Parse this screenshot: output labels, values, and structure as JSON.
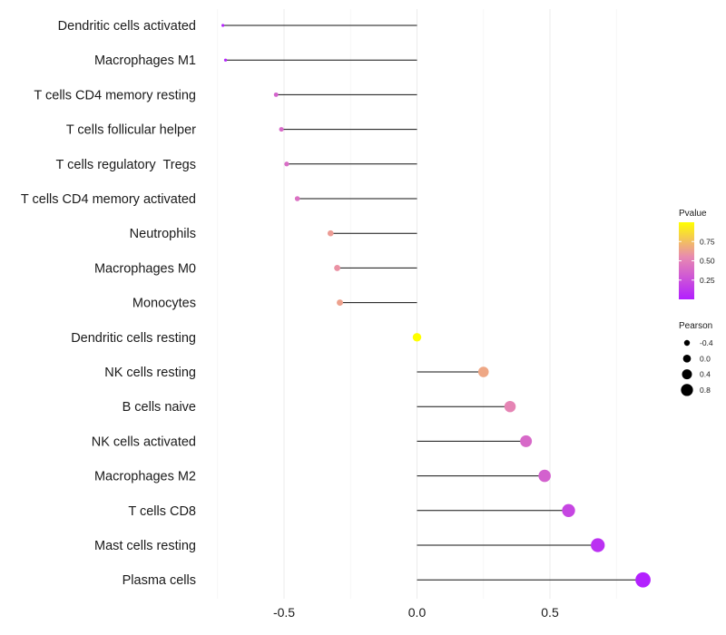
{
  "chart_data": {
    "type": "lollipop",
    "title": "",
    "xlabel": "",
    "ylabel": "",
    "xlim": [
      -0.75,
      0.87
    ],
    "x_ticks": [
      -0.5,
      0.0,
      0.5
    ],
    "x_tick_labels": [
      "-0.5",
      "0.0",
      "0.5"
    ],
    "grid": true,
    "points": [
      {
        "category": "Dendritic cells activated",
        "pearson": -0.73,
        "pvalue": 0.02
      },
      {
        "category": "Macrophages M1",
        "pearson": -0.72,
        "pvalue": 0.03
      },
      {
        "category": "T cells CD4 memory resting",
        "pearson": -0.53,
        "pvalue": 0.35
      },
      {
        "category": "T cells follicular helper",
        "pearson": -0.51,
        "pvalue": 0.38
      },
      {
        "category": "T cells regulatory  Tregs",
        "pearson": -0.49,
        "pvalue": 0.4
      },
      {
        "category": "T cells CD4 memory activated",
        "pearson": -0.45,
        "pvalue": 0.42
      },
      {
        "category": "Neutrophils",
        "pearson": -0.325,
        "pvalue": 0.62
      },
      {
        "category": "Macrophages M0",
        "pearson": -0.3,
        "pvalue": 0.58
      },
      {
        "category": "Monocytes",
        "pearson": -0.29,
        "pvalue": 0.64
      },
      {
        "category": "Dendritic cells resting",
        "pearson": 0.0,
        "pvalue": 1.0
      },
      {
        "category": "NK cells resting",
        "pearson": 0.25,
        "pvalue": 0.66
      },
      {
        "category": "B cells naive",
        "pearson": 0.35,
        "pvalue": 0.52
      },
      {
        "category": "NK cells activated",
        "pearson": 0.41,
        "pvalue": 0.38
      },
      {
        "category": "Macrophages M2",
        "pearson": 0.48,
        "pvalue": 0.34
      },
      {
        "category": "T cells CD8",
        "pearson": 0.57,
        "pvalue": 0.2
      },
      {
        "category": "Mast cells resting",
        "pearson": 0.68,
        "pvalue": 0.09
      },
      {
        "category": "Plasma cells",
        "pearson": 0.85,
        "pvalue": 0.01
      }
    ],
    "color_legend": {
      "title": "Pvalue",
      "tick_values": [
        0.25,
        0.5,
        0.75
      ],
      "tick_labels": [
        "0.25",
        "0.50",
        "0.75"
      ],
      "range": [
        0.0,
        1.0
      ],
      "low_color": "#b21fff",
      "mid_color": "#e88ab0",
      "high_color": "#ffff00"
    },
    "size_legend": {
      "title": "Pearson",
      "values": [
        -0.4,
        0.0,
        0.4,
        0.8
      ],
      "labels": [
        "-0.4",
        "0.0",
        "0.4",
        "0.8"
      ]
    }
  }
}
